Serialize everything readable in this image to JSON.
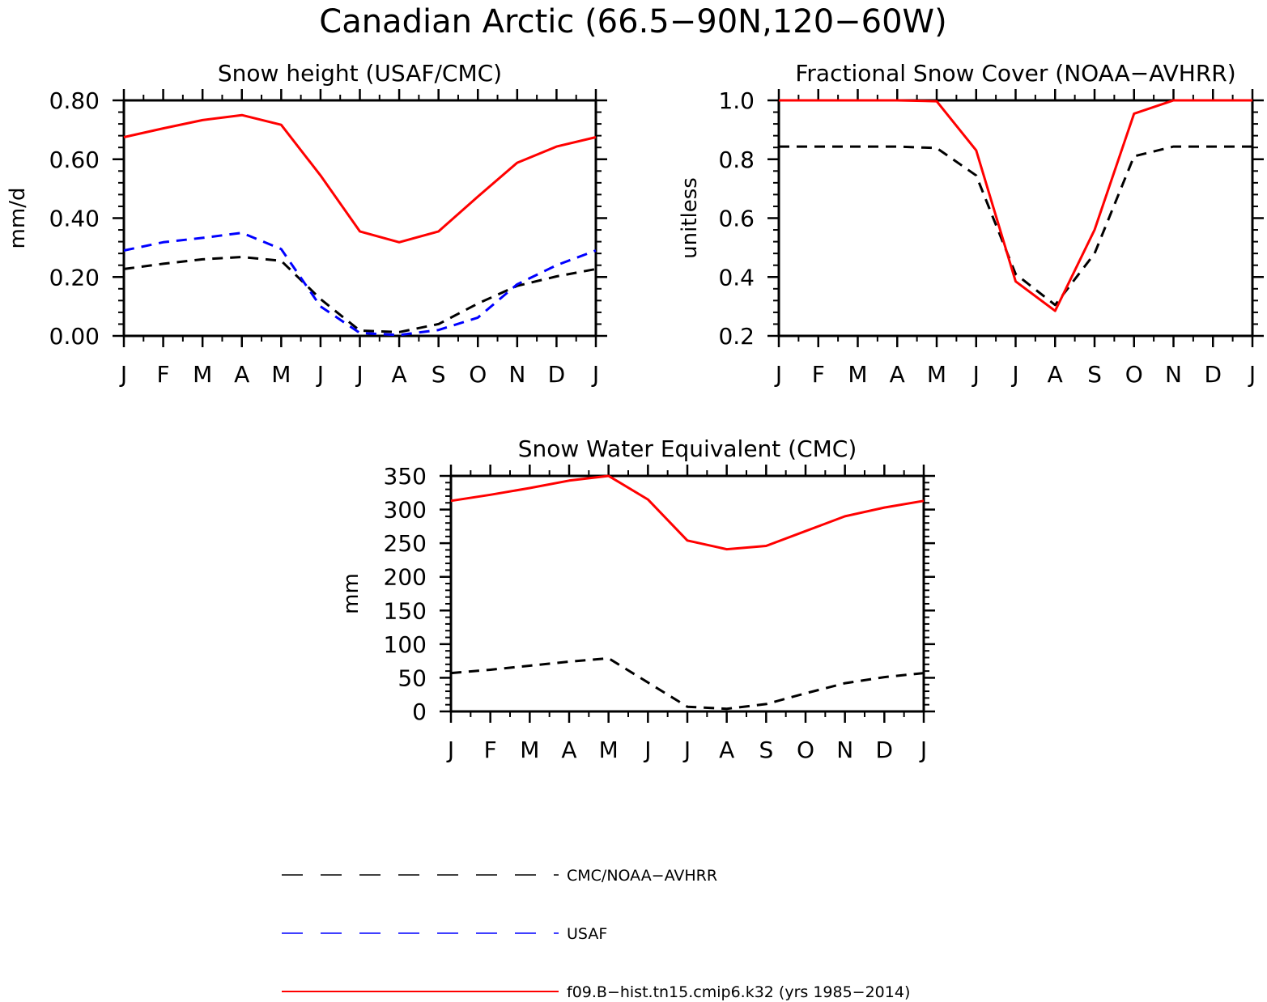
{
  "figure": {
    "title": "Canadian Arctic (66.5−90N,120−60W)"
  },
  "chart_data": [
    {
      "type": "line",
      "title": "Snow height (USAF/CMC)",
      "xlabel": "",
      "ylabel": "mm/d",
      "x": [
        "J",
        "F",
        "M",
        "A",
        "M",
        "J",
        "J",
        "A",
        "S",
        "O",
        "N",
        "D",
        "J"
      ],
      "ylim": [
        0,
        0.8
      ],
      "yticks": [
        "0.00",
        "0.20",
        "0.40",
        "0.60",
        "0.80"
      ],
      "series": [
        {
          "name": "f09.B−hist.tn15.cmip6.k32 (yrs 1985−2014)",
          "color": "#ff0000",
          "dash": "solid",
          "values": [
            0.675,
            0.705,
            0.733,
            0.75,
            0.717,
            0.545,
            0.355,
            0.318,
            0.355,
            0.473,
            0.588,
            0.643,
            0.675
          ]
        },
        {
          "name": "USAF",
          "color": "#0000ff",
          "dash": "dashed",
          "values": [
            0.29,
            0.318,
            0.333,
            0.35,
            0.295,
            0.1,
            0.01,
            0.003,
            0.02,
            0.062,
            0.175,
            0.24,
            0.29
          ]
        },
        {
          "name": "CMC/NOAA−AVHRR",
          "color": "#000000",
          "dash": "dashed",
          "values": [
            0.227,
            0.245,
            0.26,
            0.268,
            0.255,
            0.125,
            0.018,
            0.013,
            0.04,
            0.11,
            0.17,
            0.202,
            0.227
          ]
        }
      ]
    },
    {
      "type": "line",
      "title": "Fractional Snow Cover (NOAA−AVHRR)",
      "xlabel": "",
      "ylabel": "unitless",
      "x": [
        "J",
        "F",
        "M",
        "A",
        "M",
        "J",
        "J",
        "A",
        "S",
        "O",
        "N",
        "D",
        "J"
      ],
      "ylim": [
        0.2,
        1.0
      ],
      "yticks": [
        "0.2",
        "0.4",
        "0.6",
        "0.8",
        "1.0"
      ],
      "series": [
        {
          "name": "f09.B−hist.tn15.cmip6.k32 (yrs 1985−2014)",
          "color": "#ff0000",
          "dash": "solid",
          "values": [
            1.0,
            1.0,
            1.0,
            1.0,
            0.997,
            0.83,
            0.385,
            0.285,
            0.56,
            0.955,
            1.0,
            1.0,
            1.0
          ]
        },
        {
          "name": "CMC/NOAA−AVHRR",
          "color": "#000000",
          "dash": "dashed",
          "values": [
            0.843,
            0.843,
            0.843,
            0.843,
            0.838,
            0.745,
            0.41,
            0.305,
            0.48,
            0.81,
            0.843,
            0.843,
            0.843
          ]
        }
      ]
    },
    {
      "type": "line",
      "title": "Snow Water Equivalent (CMC)",
      "xlabel": "",
      "ylabel": "mm",
      "x": [
        "J",
        "F",
        "M",
        "A",
        "M",
        "J",
        "J",
        "A",
        "S",
        "O",
        "N",
        "D",
        "J"
      ],
      "ylim": [
        0,
        350
      ],
      "yticks": [
        "0",
        "50",
        "100",
        "150",
        "200",
        "250",
        "300",
        "350"
      ],
      "series": [
        {
          "name": "f09.B−hist.tn15.cmip6.k32 (yrs 1985−2014)",
          "color": "#ff0000",
          "dash": "solid",
          "values": [
            313,
            322,
            332,
            343,
            350,
            315,
            254,
            241,
            246,
            268,
            290,
            303,
            313
          ]
        },
        {
          "name": "CMC/NOAA−AVHRR",
          "color": "#000000",
          "dash": "dashed",
          "values": [
            57,
            62,
            68,
            74,
            79,
            43,
            7,
            4,
            11,
            27,
            42,
            51,
            57
          ]
        }
      ]
    }
  ],
  "legend": {
    "entries": [
      {
        "label": "CMC/NOAA−AVHRR",
        "color": "#000000",
        "dash": "dashed"
      },
      {
        "label": "USAF",
        "color": "#0000ff",
        "dash": "dashed"
      },
      {
        "label": "f09.B−hist.tn15.cmip6.k32 (yrs 1985−2014)",
        "color": "#ff0000",
        "dash": "solid"
      }
    ]
  }
}
